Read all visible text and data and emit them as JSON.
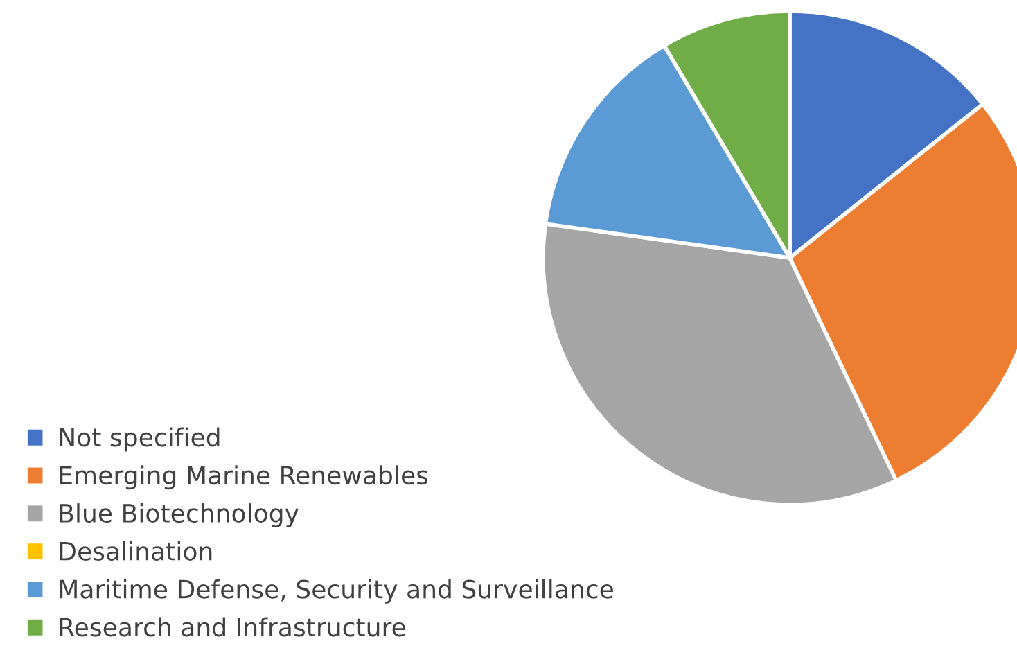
{
  "chart_data": {
    "type": "pie",
    "categories": [
      "Not specified",
      "Emerging Marine Renewables",
      "Blue Biotechnology",
      "Desalination",
      "Maritime Defense, Security and Surveillance",
      "Research and Infrastructure"
    ],
    "values": [
      14.3,
      28.6,
      34.3,
      0,
      14.3,
      8.5
    ],
    "colors": [
      "#4472c4",
      "#ed7d31",
      "#a5a5a5",
      "#ffc000",
      "#5b9bd5",
      "#70ad47"
    ],
    "legend": "bottom left"
  }
}
